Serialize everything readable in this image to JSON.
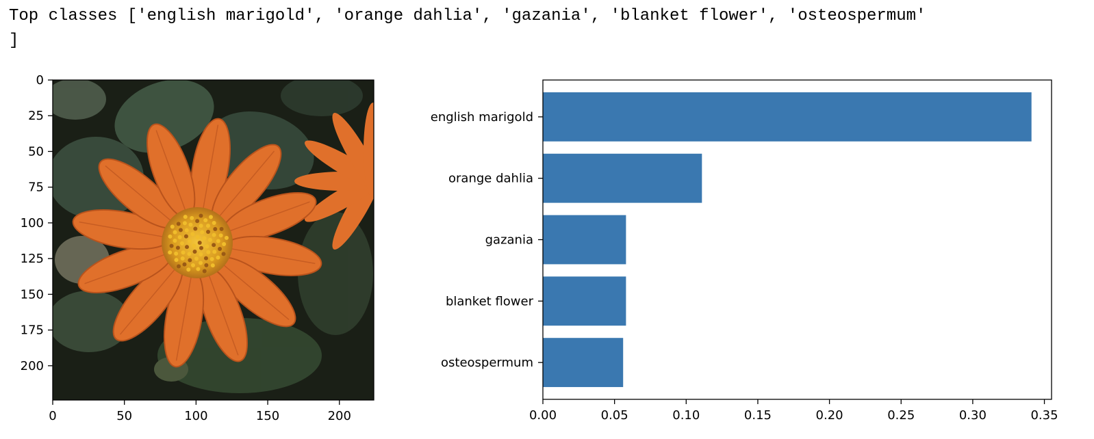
{
  "console": {
    "line1": "Top classes ['english marigold', 'orange dahlia', 'gazania', 'blanket flower', 'osteospermum'",
    "line2": "]"
  },
  "chart_data": [
    {
      "type": "image",
      "image_subject": "orange flower with yellow center on dark green leaves",
      "xlim": [
        0,
        224
      ],
      "ylim": [
        224,
        0
      ],
      "xticks": [
        0,
        50,
        100,
        150,
        200
      ],
      "yticks": [
        0,
        25,
        50,
        75,
        100,
        125,
        150,
        175,
        200
      ],
      "colors": {
        "petal": "#e0702b",
        "center": "#e8b02a",
        "leaf": "#3d5238",
        "background": "#1a1f16"
      }
    },
    {
      "type": "bar",
      "orientation": "horizontal",
      "categories": [
        "english marigold",
        "orange dahlia",
        "gazania",
        "blanket flower",
        "osteospermum"
      ],
      "values": [
        0.341,
        0.111,
        0.058,
        0.058,
        0.056
      ],
      "xlim": [
        0,
        0.355
      ],
      "xticks": [
        "0.00",
        "0.05",
        "0.10",
        "0.15",
        "0.20",
        "0.25",
        "0.30",
        "0.35"
      ],
      "bar_color": "#3a78b0",
      "grid": false
    }
  ]
}
